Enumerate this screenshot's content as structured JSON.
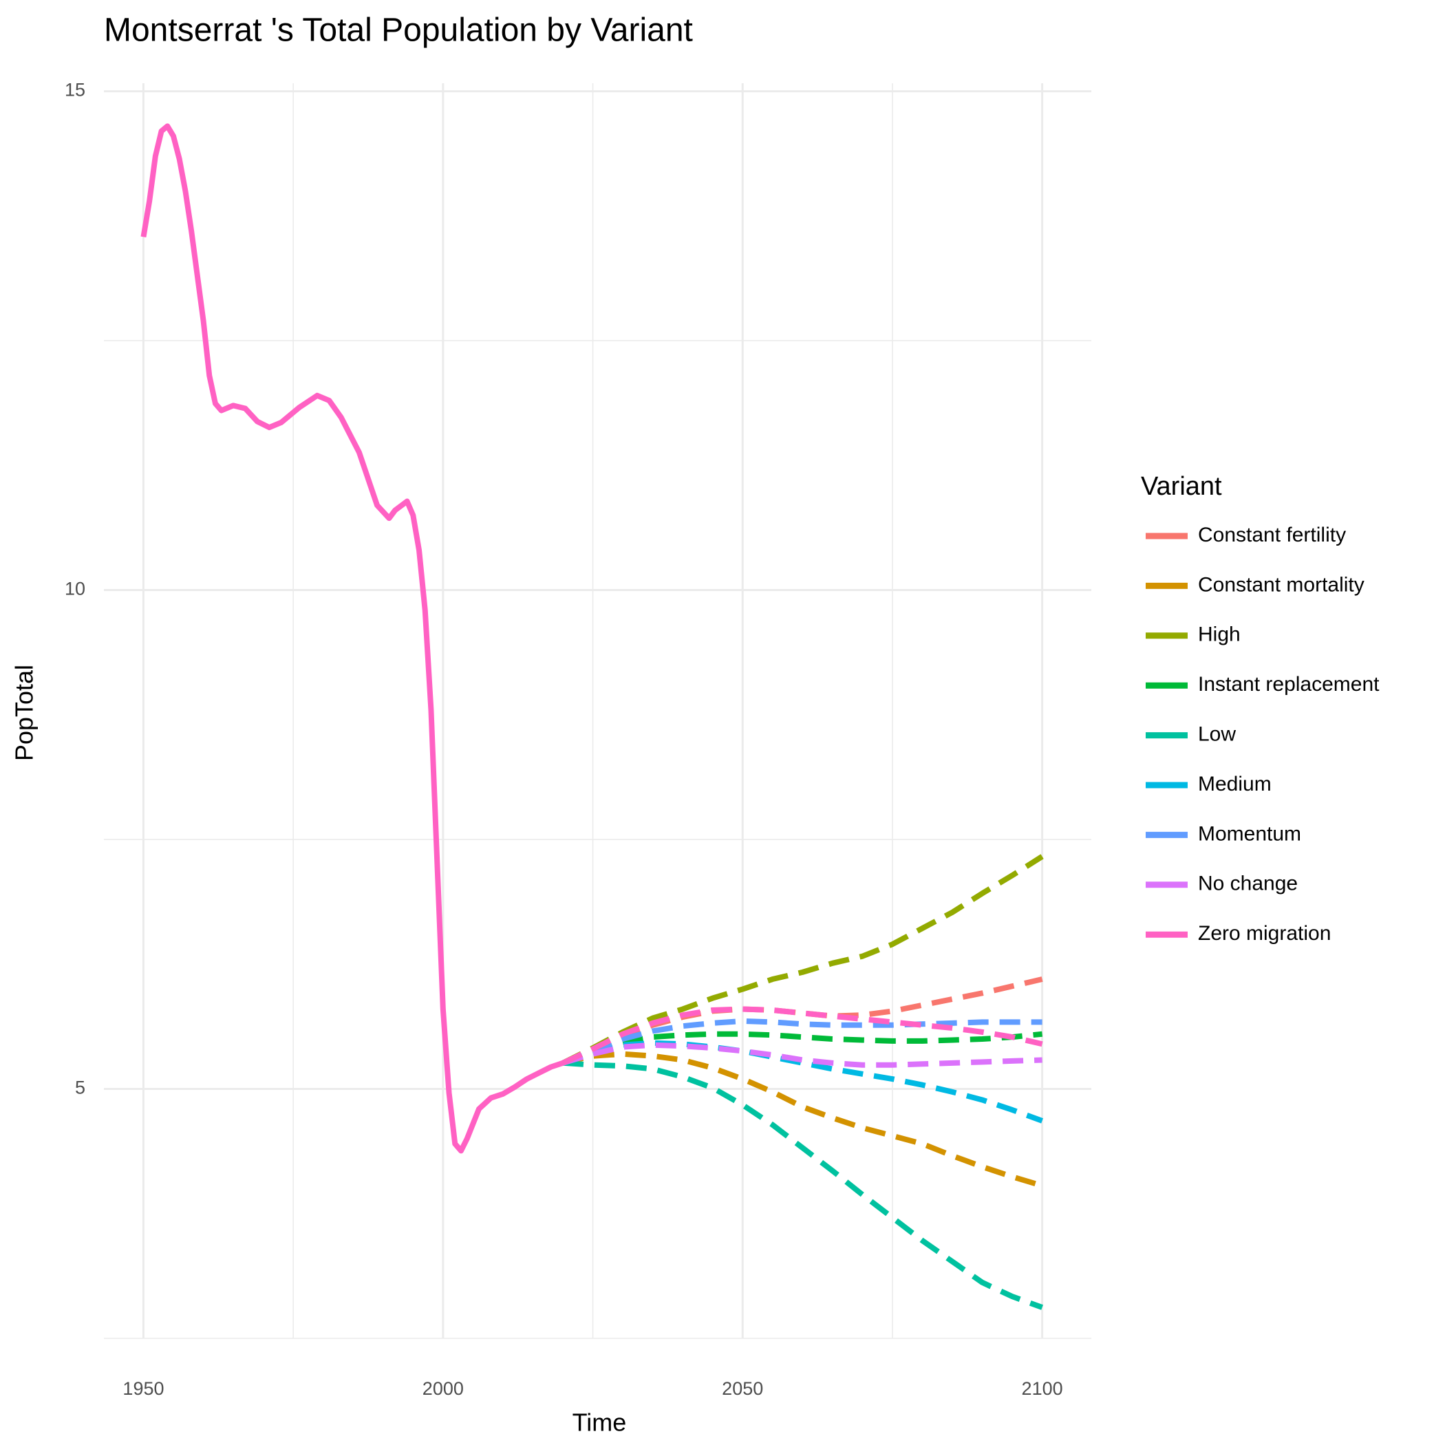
{
  "chart_data": {
    "type": "line",
    "title": "Montserrat 's Total Population by Variant",
    "x_label": "Time",
    "y_label": "PopTotal",
    "legend_title": "Variant",
    "legend": "right",
    "xlim": [
      1943.4,
      2108.2
    ],
    "xticks": [
      1950,
      2000,
      2050,
      2100
    ],
    "minor_xticks": [
      1975,
      2025,
      2075
    ],
    "ylim": [
      2.5,
      15.08
    ],
    "yticks": [
      5,
      10,
      15
    ],
    "minor_yticks": [
      2.5,
      7.5,
      12.5
    ],
    "grid": true,
    "dashed_from": 2020,
    "x": [
      1950,
      1951,
      1952,
      1953,
      1954,
      1955,
      1956,
      1957,
      1958,
      1959,
      1960,
      1961,
      1962,
      1963,
      1965,
      1967,
      1969,
      1971,
      1973,
      1976,
      1979,
      1981,
      1983,
      1986,
      1989,
      1991,
      1992,
      1994,
      1995,
      1996,
      1997,
      1998,
      2000,
      2001,
      2002,
      2003,
      2004,
      2006,
      2008,
      2010,
      2012,
      2014,
      2016,
      2018,
      2020,
      2025,
      2030,
      2035,
      2040,
      2045,
      2050,
      2055,
      2060,
      2065,
      2070,
      2075,
      2080,
      2085,
      2090,
      2095,
      2100
    ],
    "series": [
      {
        "name": "Constant fertility",
        "color": "#F8766D",
        "values": [
          null,
          null,
          null,
          null,
          null,
          null,
          null,
          null,
          null,
          null,
          null,
          null,
          null,
          null,
          null,
          null,
          null,
          null,
          null,
          null,
          null,
          null,
          null,
          null,
          null,
          null,
          null,
          null,
          null,
          null,
          null,
          null,
          null,
          null,
          null,
          null,
          null,
          null,
          null,
          null,
          null,
          null,
          null,
          null,
          5.26,
          5.4,
          5.54,
          5.64,
          5.72,
          5.78,
          5.8,
          5.79,
          5.76,
          5.73,
          5.74,
          5.78,
          5.84,
          5.9,
          5.96,
          6.03,
          6.1
        ]
      },
      {
        "name": "Constant mortality",
        "color": "#D39200",
        "values": [
          null,
          null,
          null,
          null,
          null,
          null,
          null,
          null,
          null,
          null,
          null,
          null,
          null,
          null,
          null,
          null,
          null,
          null,
          null,
          null,
          null,
          null,
          null,
          null,
          null,
          null,
          null,
          null,
          null,
          null,
          null,
          null,
          null,
          null,
          null,
          null,
          null,
          null,
          null,
          null,
          null,
          null,
          null,
          null,
          5.26,
          5.33,
          5.35,
          5.33,
          5.29,
          5.21,
          5.1,
          4.97,
          4.82,
          4.71,
          4.61,
          4.53,
          4.45,
          4.33,
          4.22,
          4.12,
          4.03
        ]
      },
      {
        "name": "High",
        "color": "#93AA00",
        "values": [
          null,
          null,
          null,
          null,
          null,
          null,
          null,
          null,
          null,
          null,
          null,
          null,
          null,
          null,
          null,
          null,
          null,
          null,
          null,
          null,
          null,
          null,
          null,
          null,
          null,
          null,
          null,
          null,
          null,
          null,
          null,
          null,
          null,
          null,
          null,
          null,
          null,
          null,
          null,
          null,
          null,
          null,
          null,
          null,
          5.26,
          5.41,
          5.57,
          5.71,
          5.8,
          5.91,
          6.0,
          6.1,
          6.17,
          6.26,
          6.33,
          6.45,
          6.61,
          6.77,
          6.96,
          7.14,
          7.33
        ]
      },
      {
        "name": "Instant replacement",
        "color": "#00BA38",
        "values": [
          null,
          null,
          null,
          null,
          null,
          null,
          null,
          null,
          null,
          null,
          null,
          null,
          null,
          null,
          null,
          null,
          null,
          null,
          null,
          null,
          null,
          null,
          null,
          null,
          null,
          null,
          null,
          null,
          null,
          null,
          null,
          null,
          null,
          null,
          null,
          null,
          null,
          null,
          null,
          null,
          null,
          null,
          null,
          null,
          5.26,
          5.37,
          5.47,
          5.52,
          5.54,
          5.55,
          5.55,
          5.54,
          5.52,
          5.5,
          5.49,
          5.48,
          5.48,
          5.49,
          5.5,
          5.52,
          5.55
        ]
      },
      {
        "name": "Low",
        "color": "#00C19F",
        "values": [
          null,
          null,
          null,
          null,
          null,
          null,
          null,
          null,
          null,
          null,
          null,
          null,
          null,
          null,
          null,
          null,
          null,
          null,
          null,
          null,
          null,
          null,
          null,
          null,
          null,
          null,
          null,
          null,
          null,
          null,
          null,
          null,
          null,
          null,
          null,
          null,
          null,
          null,
          null,
          null,
          null,
          null,
          null,
          null,
          5.26,
          5.24,
          5.23,
          5.2,
          5.12,
          5.01,
          4.84,
          4.64,
          4.41,
          4.18,
          3.94,
          3.71,
          3.48,
          3.27,
          3.06,
          2.92,
          2.81
        ]
      },
      {
        "name": "Medium",
        "color": "#00B9E3",
        "values": [
          null,
          null,
          null,
          null,
          null,
          null,
          null,
          null,
          null,
          null,
          null,
          null,
          null,
          null,
          null,
          null,
          null,
          null,
          null,
          null,
          null,
          null,
          null,
          null,
          null,
          null,
          null,
          null,
          null,
          null,
          null,
          null,
          null,
          null,
          null,
          null,
          null,
          null,
          null,
          null,
          null,
          null,
          null,
          null,
          5.26,
          5.36,
          5.44,
          5.46,
          5.45,
          5.42,
          5.38,
          5.32,
          5.26,
          5.2,
          5.15,
          5.1,
          5.04,
          4.97,
          4.89,
          4.79,
          4.68
        ]
      },
      {
        "name": "Momentum",
        "color": "#619CFF",
        "values": [
          null,
          null,
          null,
          null,
          null,
          null,
          null,
          null,
          null,
          null,
          null,
          null,
          null,
          null,
          null,
          null,
          null,
          null,
          null,
          null,
          null,
          null,
          null,
          null,
          null,
          null,
          null,
          null,
          null,
          null,
          null,
          null,
          null,
          null,
          null,
          null,
          null,
          null,
          null,
          null,
          null,
          null,
          null,
          null,
          5.26,
          5.38,
          5.5,
          5.58,
          5.63,
          5.66,
          5.68,
          5.67,
          5.65,
          5.64,
          5.64,
          5.64,
          5.65,
          5.66,
          5.67,
          5.67,
          5.67
        ]
      },
      {
        "name": "No change",
        "color": "#DB72FB",
        "values": [
          null,
          null,
          null,
          null,
          null,
          null,
          null,
          null,
          null,
          null,
          null,
          null,
          null,
          null,
          null,
          null,
          null,
          null,
          null,
          null,
          null,
          null,
          null,
          null,
          null,
          null,
          null,
          null,
          null,
          null,
          null,
          null,
          null,
          null,
          null,
          null,
          null,
          null,
          null,
          null,
          null,
          null,
          null,
          null,
          5.26,
          5.35,
          5.42,
          5.44,
          5.43,
          5.41,
          5.38,
          5.34,
          5.29,
          5.26,
          5.24,
          5.24,
          5.25,
          5.26,
          5.27,
          5.28,
          5.29
        ]
      },
      {
        "name": "Zero migration",
        "color": "#FF61C3",
        "values": [
          13.54,
          13.9,
          14.35,
          14.6,
          14.65,
          14.55,
          14.32,
          14.0,
          13.6,
          13.15,
          12.7,
          12.15,
          11.87,
          11.8,
          11.85,
          11.82,
          11.69,
          11.63,
          11.68,
          11.83,
          11.95,
          11.9,
          11.73,
          11.38,
          10.85,
          10.72,
          10.8,
          10.89,
          10.75,
          10.4,
          9.8,
          8.8,
          5.8,
          4.96,
          4.45,
          4.38,
          4.5,
          4.8,
          4.91,
          4.95,
          5.02,
          5.1,
          5.16,
          5.22,
          5.26,
          5.4,
          5.55,
          5.66,
          5.74,
          5.79,
          5.8,
          5.79,
          5.76,
          5.73,
          5.7,
          5.67,
          5.64,
          5.61,
          5.57,
          5.52,
          5.45
        ]
      }
    ]
  }
}
